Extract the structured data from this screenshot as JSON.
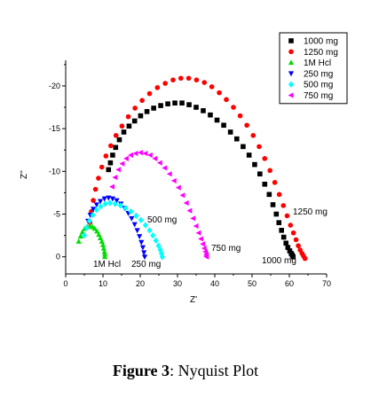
{
  "caption": {
    "label": "Figure 3",
    "sep": ":",
    "text": " Nyquist Plot"
  },
  "chart_data": {
    "type": "scatter",
    "xlabel": "Z'",
    "ylabel": "Z''",
    "xlim": [
      0,
      70
    ],
    "ylim": [
      2,
      -23
    ],
    "x_ticks": [
      0,
      10,
      20,
      30,
      40,
      50,
      60,
      70
    ],
    "y_ticks": [
      0,
      -5,
      -10,
      -15,
      -20
    ],
    "legend_position": "top-right",
    "series": [
      {
        "name": "1000 mg",
        "color": "#000000",
        "marker": "square",
        "annotation": "1000 mg",
        "x": [
          11.5,
          12.0,
          12.6,
          13.4,
          14.4,
          15.6,
          17.0,
          18.5,
          20.1,
          21.8,
          23.6,
          25.5,
          27.4,
          29.3,
          31.2,
          33.1,
          35.0,
          36.9,
          38.8,
          40.6,
          42.4,
          44.2,
          45.9,
          47.6,
          49.2,
          50.7,
          52.1,
          53.4,
          54.6,
          55.6,
          56.5,
          57.2,
          57.9,
          58.5,
          59.1,
          59.6,
          60.1,
          60.5,
          60.8,
          61.0
        ],
        "y": [
          -10.2,
          -11.0,
          -11.9,
          -12.8,
          -13.7,
          -14.6,
          -15.3,
          -15.9,
          -16.5,
          -17.0,
          -17.4,
          -17.7,
          -17.9,
          -18.0,
          -18.0,
          -17.8,
          -17.5,
          -17.1,
          -16.6,
          -16.0,
          -15.4,
          -14.6,
          -13.8,
          -12.9,
          -11.9,
          -10.8,
          -9.7,
          -8.5,
          -7.3,
          -6.1,
          -5.0,
          -4.0,
          -3.1,
          -2.3,
          -1.6,
          -1.1,
          -0.7,
          -0.4,
          -0.2,
          0.0
        ]
      },
      {
        "name": "1250 mg",
        "color": "#ff0000",
        "marker": "circle",
        "annotation": "1250 mg",
        "x": [
          6.5,
          6.9,
          7.4,
          8.0,
          8.8,
          9.7,
          10.8,
          12.1,
          13.5,
          15.1,
          16.8,
          18.6,
          20.5,
          22.5,
          24.6,
          26.7,
          28.8,
          30.9,
          33.0,
          35.1,
          37.2,
          39.2,
          41.2,
          43.1,
          45.0,
          46.8,
          48.6,
          50.3,
          51.9,
          53.4,
          54.8,
          56.1,
          57.3,
          58.4,
          59.4,
          60.3,
          61.1,
          61.8,
          62.4,
          62.9,
          63.4,
          63.8,
          64.2
        ],
        "y": [
          -4.0,
          -5.3,
          -6.6,
          -7.9,
          -9.2,
          -10.5,
          -11.8,
          -13.0,
          -14.2,
          -15.3,
          -16.4,
          -17.4,
          -18.3,
          -19.1,
          -19.8,
          -20.3,
          -20.7,
          -20.9,
          -20.9,
          -20.7,
          -20.4,
          -19.9,
          -19.2,
          -18.4,
          -17.5,
          -16.5,
          -15.4,
          -14.2,
          -12.9,
          -11.5,
          -10.1,
          -8.7,
          -7.3,
          -6.0,
          -4.8,
          -3.7,
          -2.8,
          -2.0,
          -1.3,
          -0.8,
          -0.4,
          -0.1,
          0.2
        ]
      },
      {
        "name": "1M Hcl",
        "color": "#00dd00",
        "marker": "triangle-up",
        "annotation": "1M Hcl",
        "x": [
          3.5,
          4.0,
          4.5,
          5.1,
          5.8,
          6.5,
          7.2,
          7.8,
          8.4,
          8.9,
          9.3,
          9.7,
          10.0,
          10.2,
          10.4,
          10.5,
          10.5
        ],
        "y": [
          -1.8,
          -2.4,
          -2.9,
          -3.3,
          -3.5,
          -3.6,
          -3.5,
          -3.3,
          -3.0,
          -2.6,
          -2.2,
          -1.8,
          -1.4,
          -1.0,
          -0.6,
          -0.3,
          0.0
        ]
      },
      {
        "name": "250 mg",
        "color": "#0000ff",
        "marker": "triangle-down",
        "annotation": "250 mg",
        "x": [
          6.0,
          6.6,
          7.4,
          8.3,
          9.3,
          10.4,
          11.5,
          12.6,
          13.7,
          14.8,
          15.8,
          16.8,
          17.7,
          18.5,
          19.2,
          19.8,
          20.3,
          20.7,
          21.0,
          21.2
        ],
        "y": [
          -4.2,
          -4.9,
          -5.6,
          -6.1,
          -6.5,
          -6.8,
          -6.9,
          -6.8,
          -6.6,
          -6.2,
          -5.7,
          -5.1,
          -4.5,
          -3.8,
          -3.1,
          -2.4,
          -1.7,
          -1.1,
          -0.5,
          0.0
        ]
      },
      {
        "name": "500 mg",
        "color": "#00ffff",
        "marker": "diamond",
        "annotation": "500 mg",
        "x": [
          5.0,
          5.6,
          6.4,
          7.3,
          8.3,
          9.4,
          10.6,
          11.9,
          13.3,
          14.7,
          16.1,
          17.5,
          18.9,
          20.2,
          21.4,
          22.5,
          23.4,
          24.2,
          24.9,
          25.4,
          25.7,
          25.9
        ],
        "y": [
          -2.5,
          -3.4,
          -4.2,
          -4.9,
          -5.5,
          -5.9,
          -6.2,
          -6.3,
          -6.2,
          -6.0,
          -5.7,
          -5.3,
          -4.8,
          -4.3,
          -3.7,
          -3.1,
          -2.5,
          -1.9,
          -1.3,
          -0.8,
          -0.4,
          0.0
        ]
      },
      {
        "name": "750 mg",
        "color": "#ff00ff",
        "marker": "triangle-left",
        "annotation": "750 mg",
        "x": [
          12.5,
          13.3,
          14.2,
          15.2,
          16.3,
          17.5,
          18.8,
          20.1,
          21.4,
          22.7,
          24.0,
          25.3,
          26.6,
          27.9,
          29.1,
          30.3,
          31.4,
          32.4,
          33.3,
          34.2,
          35.0,
          35.7,
          36.3,
          36.8,
          37.2,
          37.5,
          37.7,
          37.8,
          37.8
        ],
        "y": [
          -8.2,
          -9.3,
          -10.2,
          -10.9,
          -11.5,
          -11.9,
          -12.1,
          -12.2,
          -12.1,
          -11.9,
          -11.5,
          -11.0,
          -10.4,
          -9.7,
          -8.9,
          -8.1,
          -7.2,
          -6.3,
          -5.4,
          -4.5,
          -3.6,
          -2.8,
          -2.1,
          -1.5,
          -1.0,
          -0.6,
          -0.3,
          -0.1,
          0.0
        ]
      }
    ]
  }
}
